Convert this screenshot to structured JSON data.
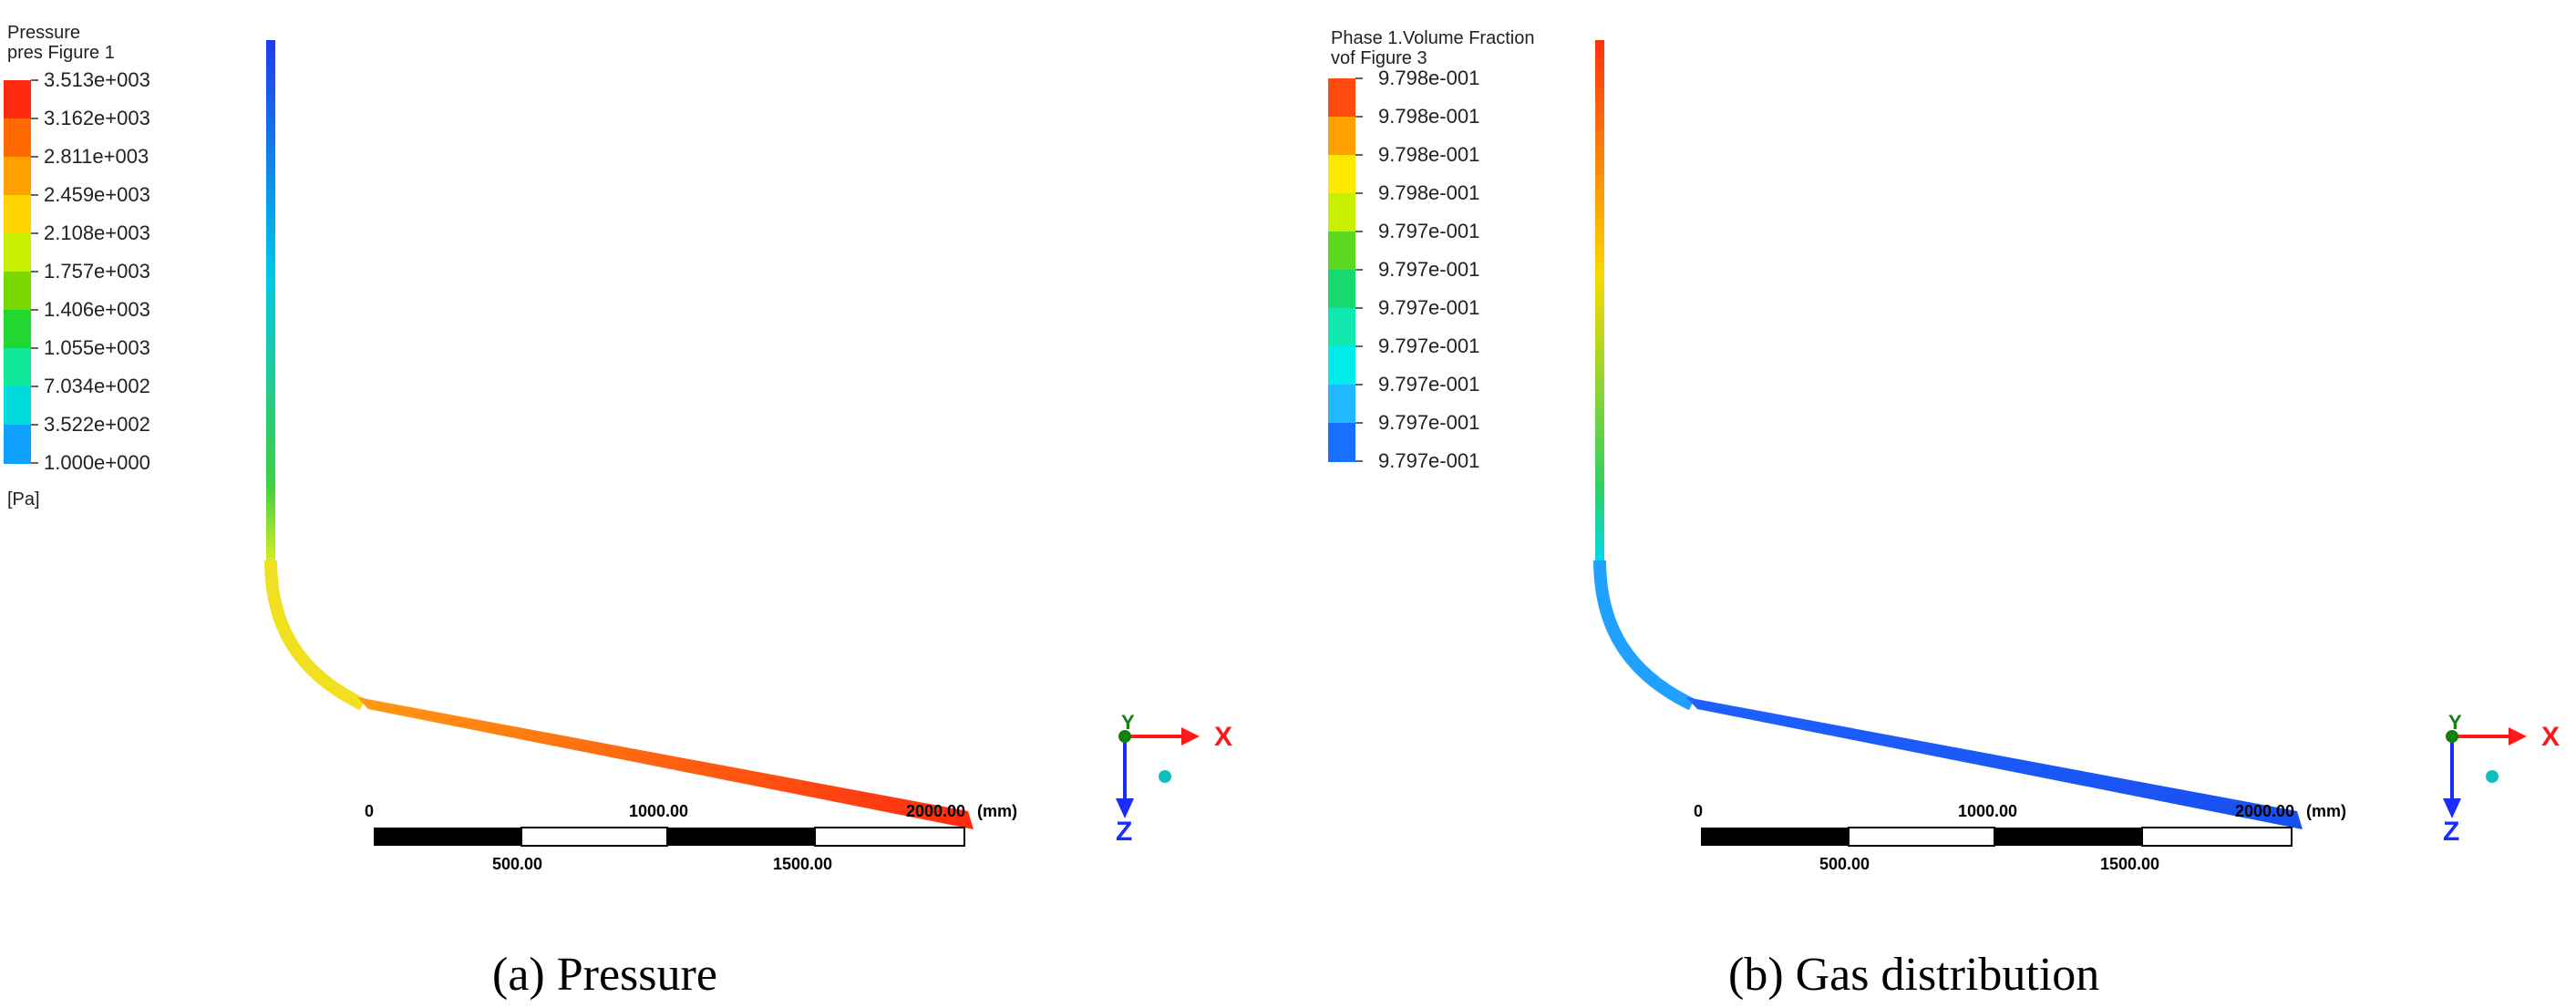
{
  "panels": [
    {
      "id": "pressure",
      "legend": {
        "title": "Pressure",
        "subtitle": "pres Figure 1",
        "unit": "[Pa]",
        "labels": [
          "3.513e+003",
          "3.162e+003",
          "2.811e+003",
          "2.459e+003",
          "2.108e+003",
          "1.757e+003",
          "1.406e+003",
          "1.055e+003",
          "7.034e+002",
          "3.522e+002",
          "1.000e+000"
        ],
        "colors": [
          "#ff2a10",
          "#ff6a00",
          "#ffa000",
          "#ffd200",
          "#c8ee00",
          "#78d800",
          "#22d830",
          "#10e89c",
          "#00dcdc",
          "#10a0ff",
          "#1856ff"
        ]
      },
      "scale": {
        "top_labels": [
          "0",
          "1000.00",
          "2000.00"
        ],
        "bottom_labels": [
          "500.00",
          "1500.00"
        ],
        "unit": "(mm)"
      },
      "pipe": {
        "vertical_top": "#1e3cf0",
        "vertical_mid": "#00c8e8",
        "vertical_low": "#40d040",
        "bend": "#d8f020",
        "bend_end": "#f0e020",
        "horizontal_start": "#ff9a10",
        "horizontal_end": "#ff2a10"
      },
      "axes": {
        "x": "X",
        "y": "Y",
        "z": "Z"
      },
      "caption": "(a) Pressure"
    },
    {
      "id": "gas",
      "legend": {
        "title": "Phase 1.Volume Fraction",
        "subtitle": "vof Figure 3",
        "unit": "",
        "labels": [
          "9.798e-001",
          "9.798e-001",
          "9.798e-001",
          "9.798e-001",
          "9.797e-001",
          "9.797e-001",
          "9.797e-001",
          "9.797e-001",
          "9.797e-001",
          "9.797e-001",
          "9.797e-001"
        ],
        "colors": [
          "#ff4a10",
          "#ffa000",
          "#ffe800",
          "#c8ee00",
          "#5ad820",
          "#18d870",
          "#10e8b0",
          "#00ecec",
          "#20b8ff",
          "#1870ff",
          "#1850ff"
        ]
      },
      "scale": {
        "top_labels": [
          "0",
          "1000.00",
          "2000.00"
        ],
        "bottom_labels": [
          "500.00",
          "1500.00"
        ],
        "unit": "(mm)"
      },
      "pipe": {
        "vertical_top": "#ff3010",
        "vertical_mid": "#f8d800",
        "vertical_low": "#30d060",
        "bend": "#00d8f0",
        "bend_end": "#20a0ff",
        "horizontal_start": "#1e60ff",
        "horizontal_end": "#1850f0"
      },
      "axes": {
        "x": "X",
        "y": "Y",
        "z": "Z"
      },
      "caption": "(b) Gas distribution"
    }
  ],
  "style": {
    "axis_red": "#ff1a1a",
    "axis_blue": "#1a2cff",
    "axis_green": "#108010",
    "teal_dot": "#10c0c0"
  }
}
